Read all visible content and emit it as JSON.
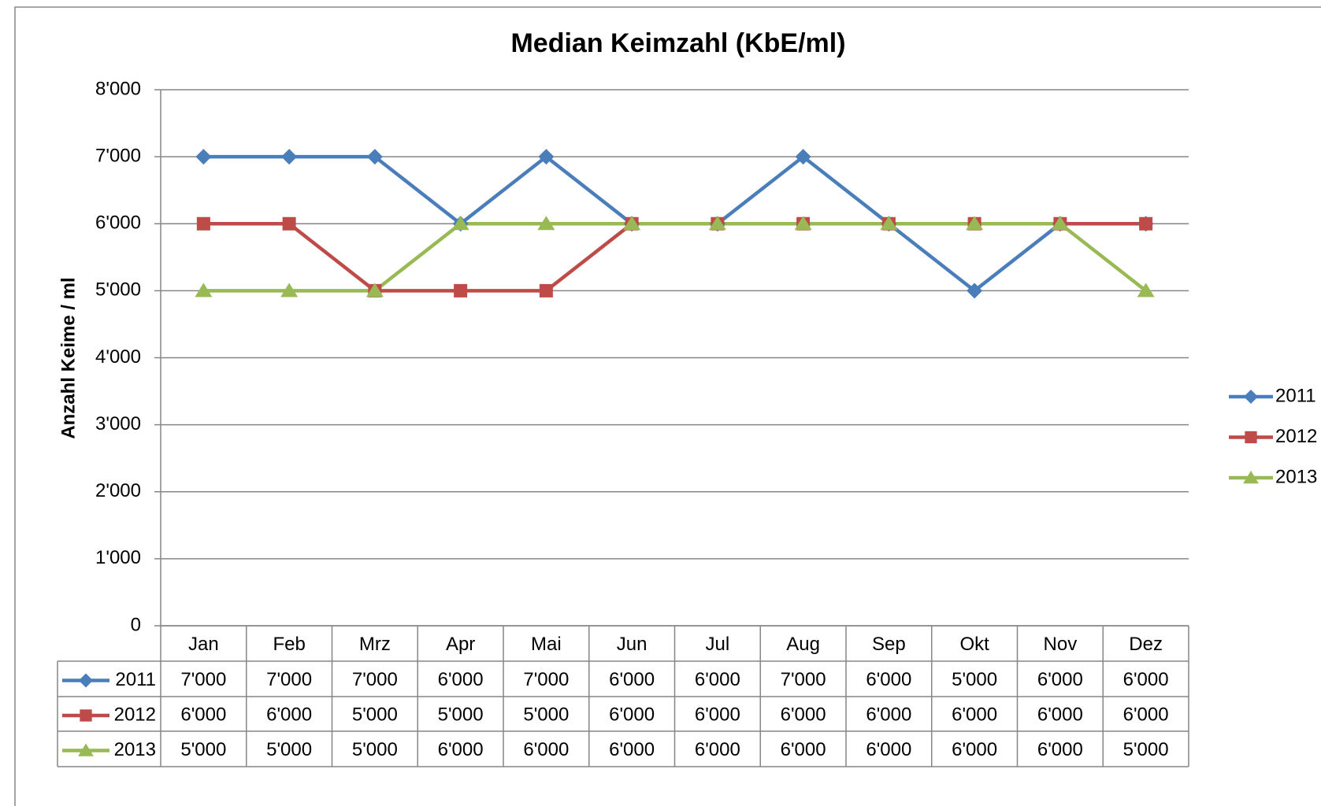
{
  "chart_data": {
    "type": "line",
    "title": "Median Keimzahl (KbE/ml)",
    "y_label": "Anzahl Keime / ml",
    "categories": [
      "Jan",
      "Feb",
      "Mrz",
      "Apr",
      "Mai",
      "Jun",
      "Jul",
      "Aug",
      "Sep",
      "Okt",
      "Nov",
      "Dez"
    ],
    "series": [
      {
        "name": "2011",
        "color": "#4a7ebb",
        "marker": "diamond",
        "values": [
          7000,
          7000,
          7000,
          6000,
          7000,
          6000,
          6000,
          7000,
          6000,
          5000,
          6000,
          6000
        ],
        "value_labels": [
          "7'000",
          "7'000",
          "7'000",
          "6'000",
          "7'000",
          "6'000",
          "6'000",
          "7'000",
          "6'000",
          "5'000",
          "6'000",
          "6'000"
        ]
      },
      {
        "name": "2012",
        "color": "#be4b48",
        "marker": "square",
        "values": [
          6000,
          6000,
          5000,
          5000,
          5000,
          6000,
          6000,
          6000,
          6000,
          6000,
          6000,
          6000
        ],
        "value_labels": [
          "6'000",
          "6'000",
          "5'000",
          "5'000",
          "5'000",
          "6'000",
          "6'000",
          "6'000",
          "6'000",
          "6'000",
          "6'000",
          "6'000"
        ]
      },
      {
        "name": "2013",
        "color": "#98b954",
        "marker": "triangle",
        "values": [
          5000,
          5000,
          5000,
          6000,
          6000,
          6000,
          6000,
          6000,
          6000,
          6000,
          6000,
          5000
        ],
        "value_labels": [
          "5'000",
          "5'000",
          "5'000",
          "6'000",
          "6'000",
          "6'000",
          "6'000",
          "6'000",
          "6'000",
          "6'000",
          "6'000",
          "5'000"
        ]
      }
    ],
    "ylim": [
      0,
      8000
    ],
    "yticks": [
      0,
      {
        "value": 1000,
        "label": "1'000"
      },
      {
        "value": 2000,
        "label": "2'000"
      },
      {
        "value": 3000,
        "label": "3'000"
      },
      {
        "value": 4000,
        "label": "4'000"
      },
      {
        "value": 5000,
        "label": "5'000"
      },
      {
        "value": 6000,
        "label": "6'000"
      },
      {
        "value": 7000,
        "label": "7'000"
      },
      {
        "value": 8000,
        "label": "8'000"
      }
    ],
    "grid": true,
    "legend": "right",
    "data_table": true
  }
}
